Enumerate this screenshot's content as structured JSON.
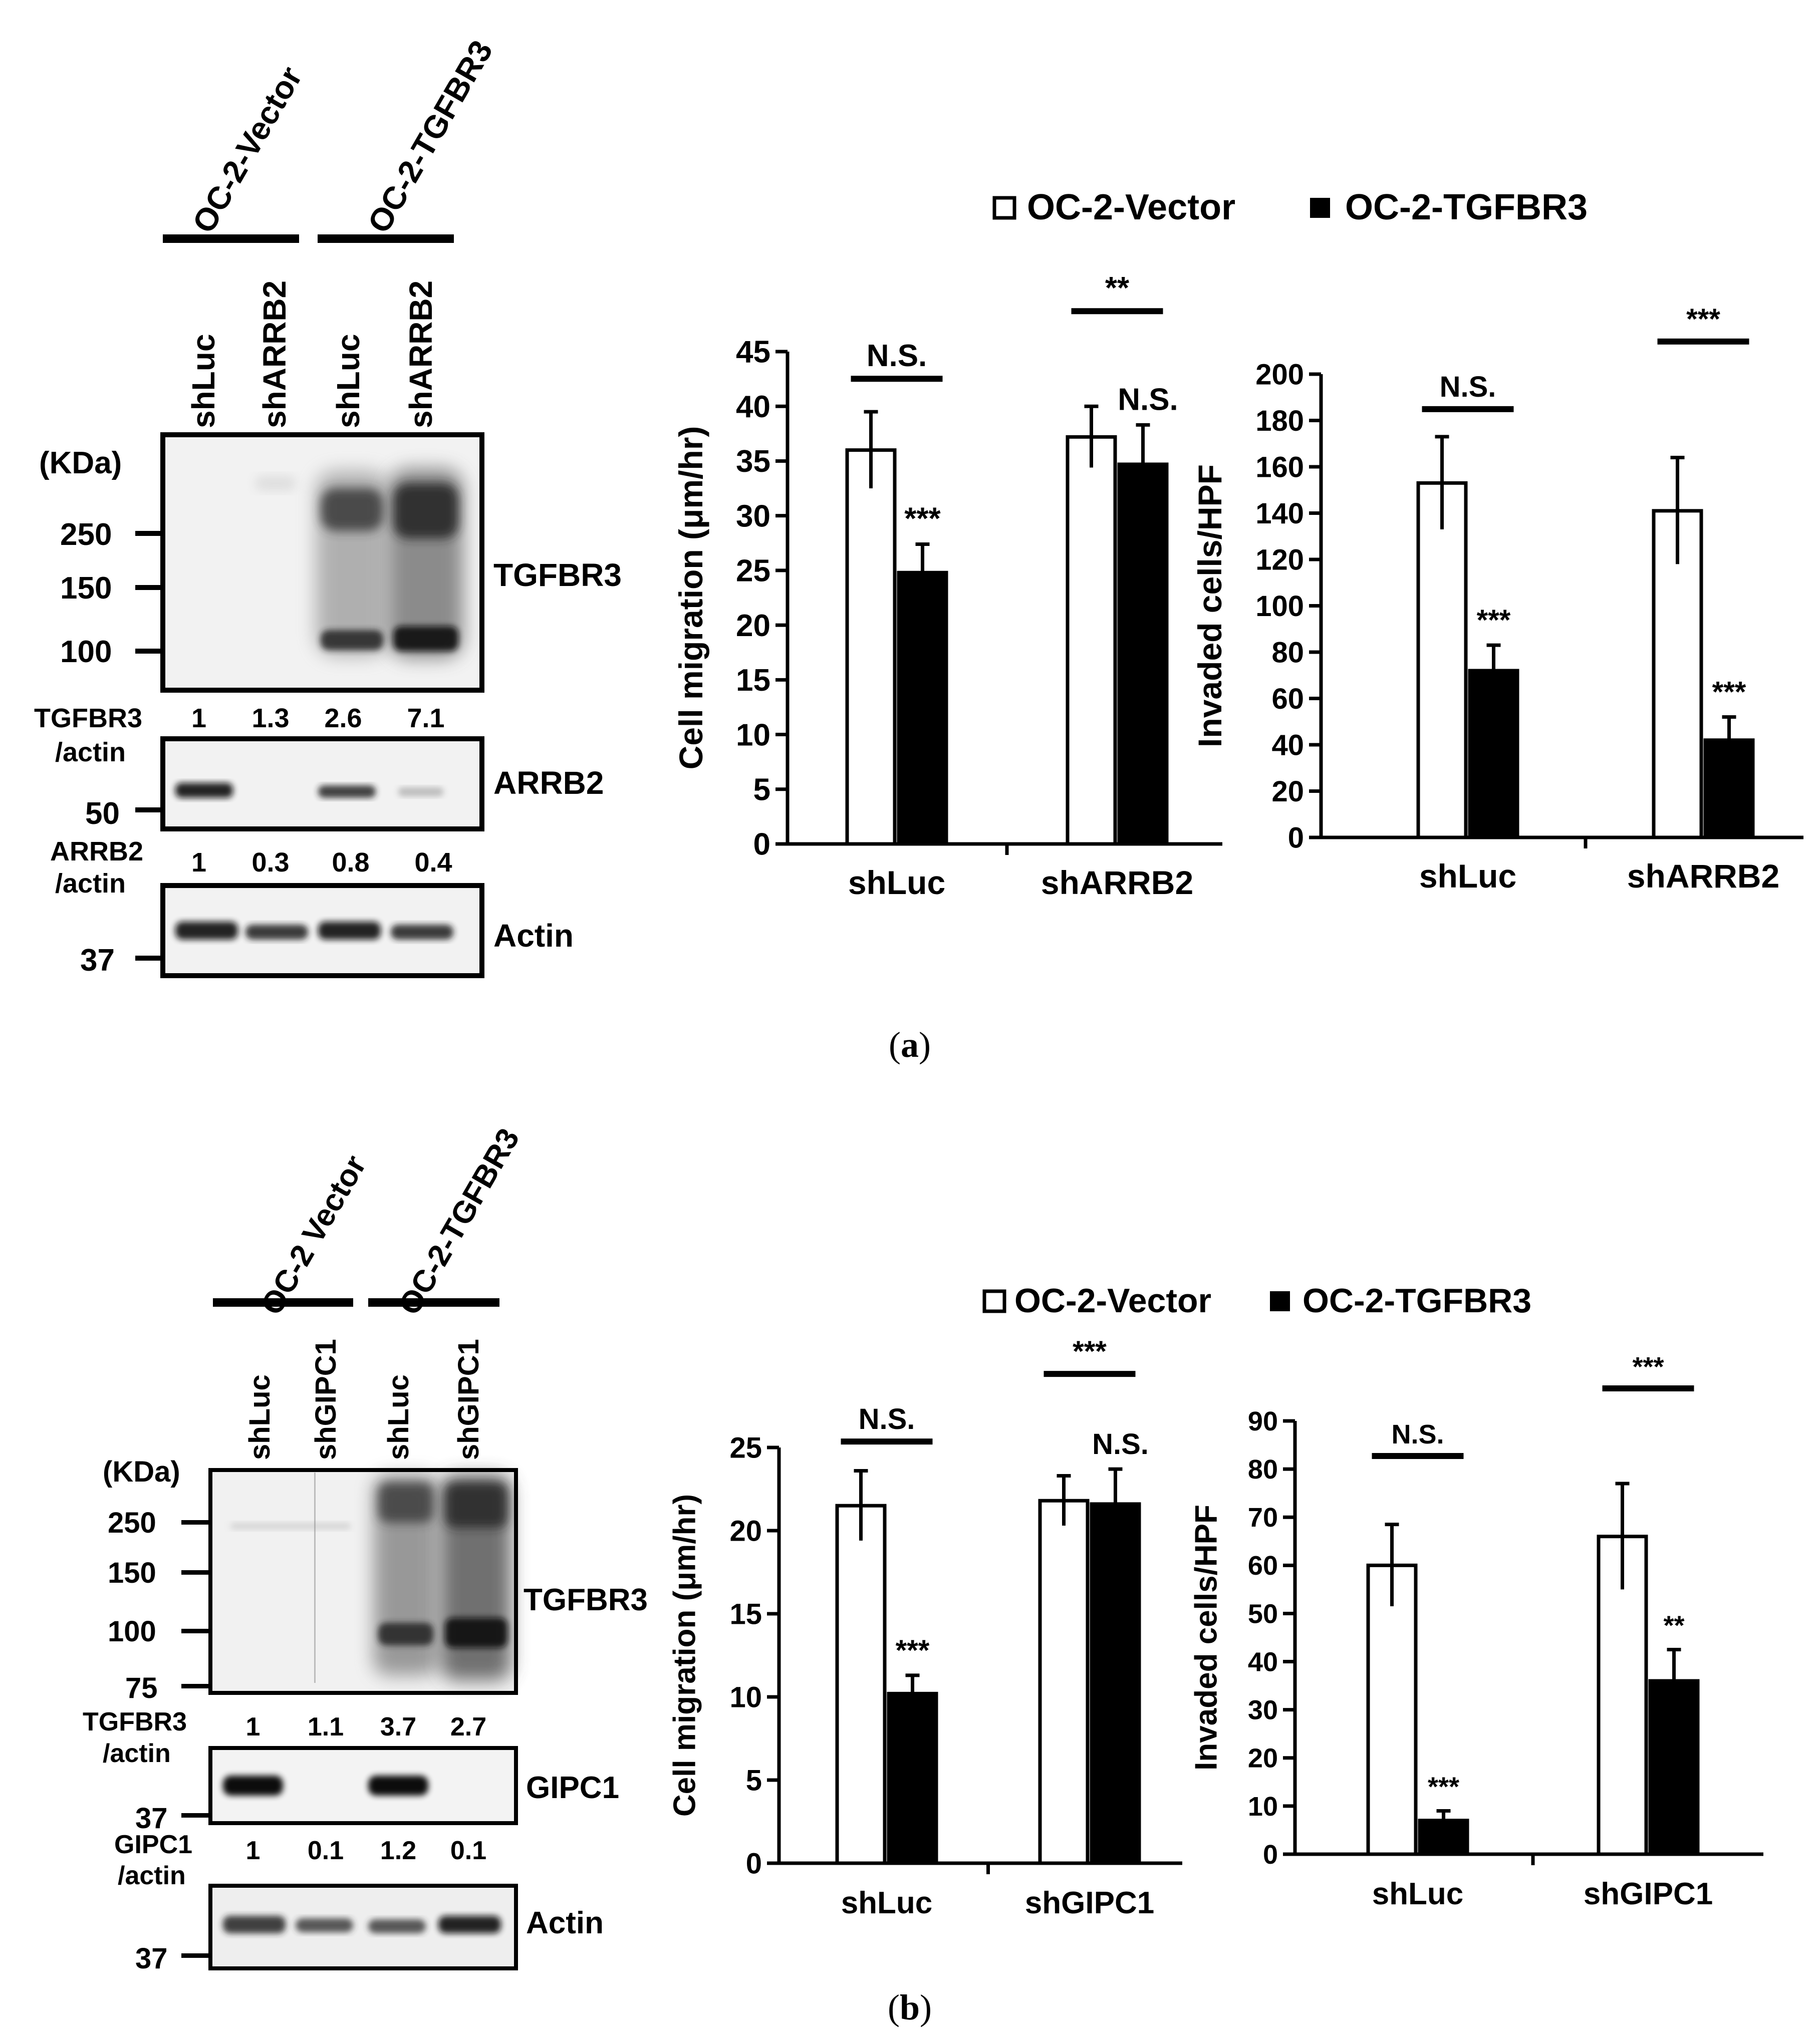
{
  "caption_a": "a",
  "caption_b": "b",
  "panel_a": {
    "blot": {
      "groups": [
        "OC-2-Vector",
        "OC-2-TGFBR3"
      ],
      "lanes": [
        "shLuc",
        "shARRB2",
        "shLuc",
        "shARRB2"
      ],
      "unit_label": "(KDa)",
      "markers_main": [
        "250",
        "150",
        "100"
      ],
      "markers_arrb2": [
        "50"
      ],
      "markers_actin": [
        "37"
      ],
      "band_labels": [
        "TGFBR3",
        "ARRB2",
        "Actin"
      ],
      "ratio1_label": [
        "TGFBR3",
        "/actin"
      ],
      "ratio1_values": [
        "1",
        "1.3",
        "2.6",
        "7.1"
      ],
      "ratio2_label": [
        "ARRB2",
        "/actin"
      ],
      "ratio2_values": [
        "1",
        "0.3",
        "0.8",
        "0.4"
      ]
    },
    "legend": [
      "OC-2-Vector",
      "OC-2-TGFBR3"
    ]
  },
  "panel_b": {
    "blot": {
      "groups": [
        "OC-2 Vector",
        "OC-2-TGFBR3"
      ],
      "lanes": [
        "shLuc",
        "shGIPC1",
        "shLuc",
        "shGIPC1"
      ],
      "unit_label": "(KDa)",
      "markers_main": [
        "250",
        "150",
        "100",
        "75"
      ],
      "markers_gipc1": [
        "37"
      ],
      "markers_actin": [
        "37"
      ],
      "band_labels": [
        "TGFBR3",
        "GIPC1",
        "Actin"
      ],
      "ratio1_label": [
        "TGFBR3",
        "/actin"
      ],
      "ratio1_values": [
        "1",
        "1.1",
        "3.7",
        "2.7"
      ],
      "ratio2_label": [
        "GIPC1",
        "/actin"
      ],
      "ratio2_values": [
        "1",
        "0.1",
        "1.2",
        "0.1"
      ]
    },
    "legend": [
      "OC-2-Vector",
      "OC-2-TGFBR3"
    ]
  },
  "chart_data": [
    {
      "id": "a-migration",
      "type": "bar",
      "ylabel": "Cell migration (μm/hr)",
      "categories": [
        "shLuc",
        "shARRB2"
      ],
      "ylim": [
        0,
        45
      ],
      "yticks": [
        0,
        5,
        10,
        15,
        20,
        25,
        30,
        35,
        40,
        45
      ],
      "series": [
        {
          "name": "OC-2-Vector",
          "color": "#ffffff",
          "values": [
            36.0,
            37.2
          ],
          "errors": [
            3.5,
            2.8
          ]
        },
        {
          "name": "OC-2-TGFBR3",
          "color": "#000000",
          "values": [
            24.8,
            34.7
          ],
          "errors": [
            2.6,
            3.6
          ]
        }
      ],
      "bar_labels": [
        [
          "",
          ""
        ],
        [
          "***",
          "N.S."
        ]
      ],
      "brackets": [
        {
          "from": [
            0,
            0
          ],
          "to": [
            1,
            0
          ],
          "label": "N.S."
        },
        {
          "from": [
            0,
            1
          ],
          "to": [
            1,
            1
          ],
          "label": "**"
        }
      ]
    },
    {
      "id": "a-invasion",
      "type": "bar",
      "ylabel": "Invaded cells/HPF",
      "categories": [
        "shLuc",
        "shARRB2"
      ],
      "ylim": [
        0,
        200
      ],
      "yticks": [
        0,
        20,
        40,
        60,
        80,
        100,
        120,
        140,
        160,
        180,
        200
      ],
      "series": [
        {
          "name": "OC-2-Vector",
          "color": "#ffffff",
          "values": [
            153,
            141
          ],
          "errors": [
            20,
            23
          ]
        },
        {
          "name": "OC-2-TGFBR3",
          "color": "#000000",
          "values": [
            72,
            42
          ],
          "errors": [
            11,
            10
          ]
        }
      ],
      "bar_labels": [
        [
          "",
          ""
        ],
        [
          "***",
          "***"
        ]
      ],
      "brackets": [
        {
          "from": [
            0,
            0
          ],
          "to": [
            1,
            0
          ],
          "label": "N.S."
        },
        {
          "from": [
            0,
            1
          ],
          "to": [
            1,
            1
          ],
          "label": "***"
        }
      ]
    },
    {
      "id": "b-migration",
      "type": "bar",
      "ylabel": "Cell migration (μm/hr)",
      "categories": [
        "shLuc",
        "shGIPC1"
      ],
      "ylim": [
        0,
        25
      ],
      "yticks": [
        0,
        5,
        10,
        15,
        20,
        25
      ],
      "series": [
        {
          "name": "OC-2-Vector",
          "color": "#ffffff",
          "values": [
            21.5,
            21.8
          ],
          "errors": [
            2.1,
            1.5
          ]
        },
        {
          "name": "OC-2-TGFBR3",
          "color": "#000000",
          "values": [
            10.2,
            21.6
          ],
          "errors": [
            1.1,
            2.1
          ]
        }
      ],
      "bar_labels": [
        [
          "",
          ""
        ],
        [
          "***",
          "N.S."
        ]
      ],
      "brackets": [
        {
          "from": [
            0,
            0
          ],
          "to": [
            1,
            0
          ],
          "label": "N.S."
        },
        {
          "from": [
            0,
            1
          ],
          "to": [
            1,
            1
          ],
          "label": "***"
        }
      ]
    },
    {
      "id": "b-invasion",
      "type": "bar",
      "ylabel": "Invaded cells/HPF",
      "categories": [
        "shLuc",
        "shGIPC1"
      ],
      "ylim": [
        0,
        90
      ],
      "yticks": [
        0,
        10,
        20,
        30,
        40,
        50,
        60,
        70,
        80,
        90
      ],
      "series": [
        {
          "name": "OC-2-Vector",
          "color": "#ffffff",
          "values": [
            60,
            66
          ],
          "errors": [
            8.5,
            11
          ]
        },
        {
          "name": "OC-2-TGFBR3",
          "color": "#000000",
          "values": [
            7,
            36
          ],
          "errors": [
            2,
            6.5
          ]
        }
      ],
      "bar_labels": [
        [
          "",
          ""
        ],
        [
          "***",
          "**"
        ]
      ],
      "brackets": [
        {
          "from": [
            0,
            0
          ],
          "to": [
            1,
            0
          ],
          "label": "N.S."
        },
        {
          "from": [
            0,
            1
          ],
          "to": [
            1,
            1
          ],
          "label": "***"
        }
      ]
    }
  ]
}
